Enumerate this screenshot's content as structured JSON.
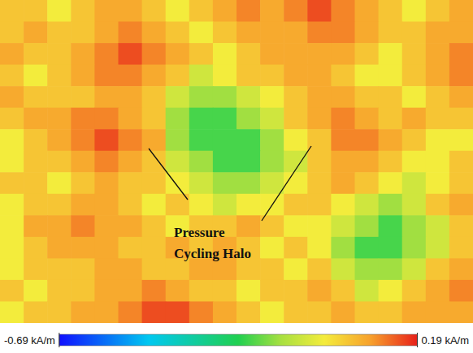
{
  "chart_data": {
    "type": "heatmap",
    "annotation": "Pressure Cycling Halo",
    "cells": [
      [
        0.02,
        0.02,
        -0.04,
        0.02,
        0.06,
        0.06,
        0.02,
        -0.04,
        0.02,
        0.06,
        0.1,
        0.06,
        0.1,
        0.15,
        0.1,
        0.06,
        0.02,
        -0.04,
        0.02,
        0.06
      ],
      [
        0.02,
        0.06,
        0.02,
        0.02,
        0.06,
        0.1,
        0.06,
        0.02,
        -0.04,
        0.02,
        0.06,
        0.06,
        0.06,
        0.1,
        0.1,
        0.06,
        0.02,
        0.02,
        0.06,
        0.06
      ],
      [
        0.06,
        0.02,
        0.02,
        0.06,
        0.1,
        0.15,
        0.1,
        0.06,
        0.02,
        -0.04,
        0.02,
        0.06,
        0.06,
        0.06,
        0.06,
        0.02,
        -0.04,
        0.02,
        0.06,
        0.1
      ],
      [
        0.02,
        -0.04,
        0.02,
        0.06,
        0.1,
        0.1,
        0.06,
        0.02,
        -0.09,
        -0.04,
        0.02,
        0.02,
        0.06,
        0.06,
        0.02,
        -0.04,
        -0.04,
        0.02,
        0.06,
        0.1
      ],
      [
        0.06,
        0.02,
        0.02,
        0.02,
        0.06,
        0.06,
        0.02,
        -0.09,
        -0.15,
        -0.15,
        -0.09,
        -0.04,
        0.02,
        0.06,
        0.06,
        0.02,
        0.02,
        -0.04,
        0.02,
        0.06
      ],
      [
        0.02,
        0.06,
        0.06,
        0.1,
        0.1,
        0.06,
        0.02,
        -0.15,
        -0.22,
        -0.22,
        -0.15,
        -0.09,
        0.02,
        0.06,
        0.1,
        0.06,
        0.02,
        0.06,
        0.02,
        0.02
      ],
      [
        -0.04,
        0.02,
        0.06,
        0.1,
        0.15,
        0.1,
        0.06,
        -0.15,
        -0.22,
        -0.22,
        -0.22,
        -0.15,
        -0.04,
        0.02,
        0.1,
        0.1,
        0.06,
        0.02,
        -0.04,
        -0.04
      ],
      [
        -0.04,
        0.02,
        0.02,
        0.06,
        0.1,
        0.06,
        0.02,
        -0.09,
        -0.15,
        -0.22,
        -0.22,
        -0.15,
        -0.09,
        0.02,
        0.06,
        0.06,
        0.02,
        -0.04,
        -0.04,
        0.02
      ],
      [
        0.02,
        0.02,
        -0.04,
        0.02,
        0.06,
        0.02,
        0.02,
        -0.04,
        -0.09,
        -0.15,
        -0.15,
        -0.09,
        -0.04,
        0.02,
        0.06,
        0.02,
        -0.04,
        -0.09,
        -0.04,
        0.02
      ],
      [
        -0.04,
        0.02,
        0.02,
        0.06,
        0.06,
        0.02,
        -0.04,
        0.02,
        -0.04,
        -0.09,
        -0.04,
        -0.04,
        0.02,
        0.02,
        -0.04,
        -0.09,
        -0.15,
        -0.09,
        0.02,
        0.06
      ],
      [
        -0.04,
        0.06,
        0.06,
        0.1,
        0.06,
        0.06,
        0.02,
        -0.04,
        0.02,
        0.02,
        0.06,
        0.02,
        -0.04,
        -0.04,
        -0.09,
        -0.15,
        -0.22,
        -0.15,
        -0.09,
        0.02
      ],
      [
        -0.04,
        0.02,
        0.06,
        0.06,
        0.06,
        0.02,
        0.02,
        0.06,
        0.02,
        0.06,
        0.02,
        -0.04,
        0.02,
        -0.04,
        -0.15,
        -0.22,
        -0.22,
        -0.15,
        -0.09,
        0.02
      ],
      [
        -0.04,
        0.02,
        0.02,
        0.02,
        0.06,
        0.06,
        0.02,
        0.02,
        0.06,
        0.06,
        0.02,
        0.02,
        -0.04,
        0.02,
        -0.09,
        -0.15,
        -0.15,
        -0.09,
        0.02,
        0.06
      ],
      [
        0.02,
        -0.04,
        0.02,
        0.02,
        0.06,
        0.06,
        0.1,
        0.06,
        0.02,
        0.02,
        -0.04,
        0.02,
        0.02,
        0.06,
        0.02,
        -0.09,
        -0.04,
        0.02,
        0.06,
        0.1
      ],
      [
        -0.04,
        0.02,
        0.02,
        0.06,
        0.06,
        0.1,
        0.15,
        0.15,
        0.1,
        0.06,
        0.02,
        -0.04,
        0.02,
        0.02,
        0.06,
        0.02,
        0.02,
        0.06,
        0.06,
        0.06
      ]
    ],
    "colorbar_range": [
      -0.69,
      0.19
    ],
    "colorbar_ticks": [
      {
        "value": -0.69,
        "label": "-0.69 kA/m"
      },
      {
        "value": 0.19,
        "label": "0.19 kA/m"
      }
    ]
  }
}
